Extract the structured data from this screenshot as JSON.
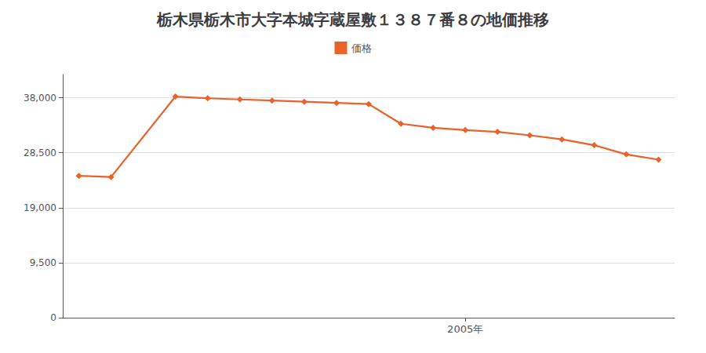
{
  "chart_data": {
    "type": "line",
    "title": "栃木県栃木市大字本城字蔵屋敷１３８７番８の地価推移",
    "x": [
      1993,
      1994,
      1996,
      1997,
      1998,
      1999,
      2000,
      2001,
      2002,
      2003,
      2004,
      2005,
      2006,
      2007,
      2008,
      2009,
      2010,
      2011
    ],
    "series": [
      {
        "name": "価格",
        "color": "#e8622a",
        "marker": "diamond",
        "values": [
          24500,
          24300,
          38200,
          37900,
          37700,
          37500,
          37300,
          37100,
          36900,
          33500,
          32800,
          32400,
          32100,
          31500,
          30800,
          29800,
          28200,
          27300
        ]
      }
    ],
    "xlim": [
      1992.5,
      2011.5
    ],
    "xticks": [
      {
        "value": 2005,
        "label": "2005年"
      }
    ],
    "ylim": [
      0,
      42000
    ],
    "yticks": [
      0,
      {
        "value": 9500,
        "label": "9,500"
      },
      {
        "value": 19000,
        "label": "19,000"
      },
      {
        "value": 28500,
        "label": "28,500"
      },
      {
        "value": 38000,
        "label": "38,000"
      }
    ],
    "grid": true,
    "legend": "top"
  }
}
